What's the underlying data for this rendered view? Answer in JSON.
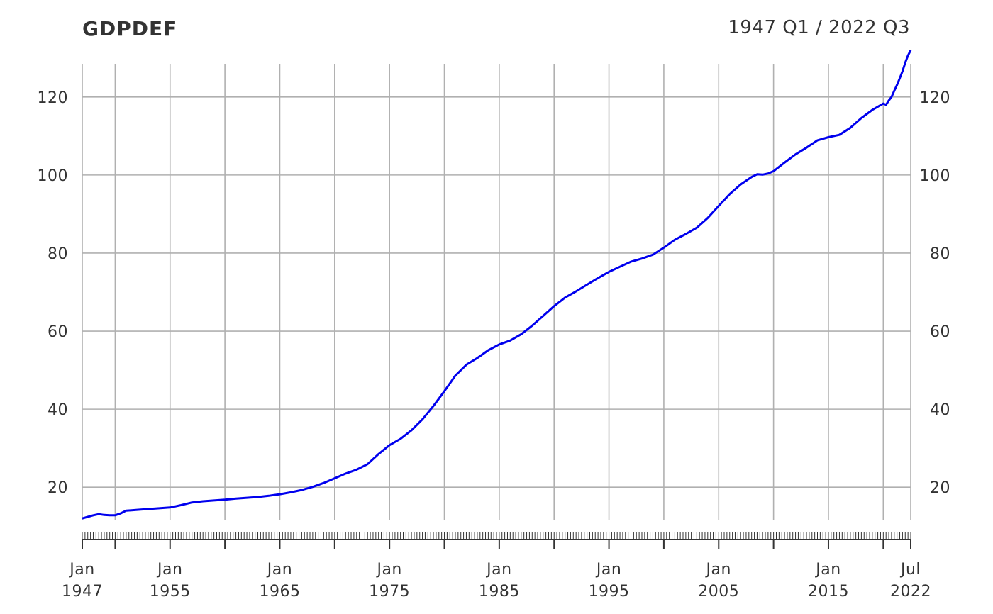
{
  "chart_data": {
    "type": "line",
    "title": "GDPDEF",
    "subtitle": "1947 Q1 / 2022 Q3",
    "xlabel": "",
    "ylabel": "",
    "xlim": [
      1947.0,
      2022.5
    ],
    "ylim": [
      11.5,
      128.5
    ],
    "grid": true,
    "legend": "none",
    "series_color": "#0000ee",
    "y_ticks": [
      20,
      40,
      60,
      80,
      100,
      120
    ],
    "y_tick_labels": [
      "20",
      "40",
      "60",
      "80",
      "100",
      "120"
    ],
    "x_ticks": [
      {
        "x": 1947.0,
        "line1": "Jan",
        "line2": "1947"
      },
      {
        "x": 1955.0,
        "line1": "Jan",
        "line2": "1955"
      },
      {
        "x": 1965.0,
        "line1": "Jan",
        "line2": "1965"
      },
      {
        "x": 1975.0,
        "line1": "Jan",
        "line2": "1975"
      },
      {
        "x": 1985.0,
        "line1": "Jan",
        "line2": "1985"
      },
      {
        "x": 1995.0,
        "line1": "Jan",
        "line2": "1995"
      },
      {
        "x": 2005.0,
        "line1": "Jan",
        "line2": "2005"
      },
      {
        "x": 2015.0,
        "line1": "Jan",
        "line2": "2015"
      },
      {
        "x": 2022.5,
        "line1": "Jul",
        "line2": "2022"
      }
    ],
    "x_grid": [
      1947,
      1950,
      1955,
      1960,
      1965,
      1970,
      1975,
      1980,
      1985,
      1990,
      1995,
      2000,
      2005,
      2010,
      2015,
      2020
    ],
    "series": [
      {
        "x": [
          1947.0,
          1947.5,
          1948.0,
          1948.5,
          1949.0,
          1949.5,
          1950.0,
          1950.5,
          1951.0,
          1951.5,
          1952.0,
          1953.0,
          1954.0,
          1955.0,
          1956.0,
          1957.0,
          1958.0,
          1959.0,
          1960.0,
          1961.0,
          1962.0,
          1963.0,
          1964.0,
          1965.0,
          1966.0,
          1967.0,
          1968.0,
          1969.0,
          1970.0,
          1971.0,
          1972.0,
          1973.0,
          1974.0,
          1975.0,
          1976.0,
          1977.0,
          1978.0,
          1979.0,
          1980.0,
          1981.0,
          1982.0,
          1983.0,
          1984.0,
          1985.0,
          1986.0,
          1987.0,
          1988.0,
          1989.0,
          1990.0,
          1991.0,
          1992.0,
          1993.0,
          1994.0,
          1995.0,
          1996.0,
          1997.0,
          1998.0,
          1999.0,
          2000.0,
          2001.0,
          2002.0,
          2003.0,
          2004.0,
          2005.0,
          2006.0,
          2007.0,
          2008.0,
          2008.5,
          2009.0,
          2009.5,
          2010.0,
          2011.0,
          2012.0,
          2013.0,
          2014.0,
          2015.0,
          2016.0,
          2017.0,
          2018.0,
          2019.0,
          2020.0,
          2020.25,
          2020.5,
          2020.75,
          2021.0,
          2021.25,
          2021.5,
          2021.75,
          2022.0,
          2022.25,
          2022.5
        ],
        "y": [
          12.0,
          12.4,
          12.8,
          13.1,
          12.9,
          12.8,
          12.8,
          13.3,
          14.0,
          14.1,
          14.2,
          14.4,
          14.6,
          14.8,
          15.4,
          16.1,
          16.4,
          16.6,
          16.8,
          17.1,
          17.3,
          17.5,
          17.8,
          18.2,
          18.7,
          19.3,
          20.1,
          21.1,
          22.3,
          23.5,
          24.5,
          25.9,
          28.5,
          30.8,
          32.4,
          34.6,
          37.4,
          40.8,
          44.6,
          48.6,
          51.4,
          53.1,
          55.1,
          56.6,
          57.6,
          59.2,
          61.4,
          63.9,
          66.4,
          68.6,
          70.2,
          71.9,
          73.6,
          75.2,
          76.5,
          77.8,
          78.6,
          79.6,
          81.4,
          83.4,
          84.9,
          86.5,
          89.0,
          92.1,
          95.1,
          97.6,
          99.5,
          100.2,
          100.1,
          100.4,
          101.0,
          103.2,
          105.3,
          107.0,
          108.9,
          109.7,
          110.3,
          112.1,
          114.6,
          116.7,
          118.3,
          118.0,
          119.1,
          120.0,
          121.6,
          123.1,
          124.8,
          126.6,
          128.8,
          130.6,
          132.0
        ]
      }
    ]
  }
}
